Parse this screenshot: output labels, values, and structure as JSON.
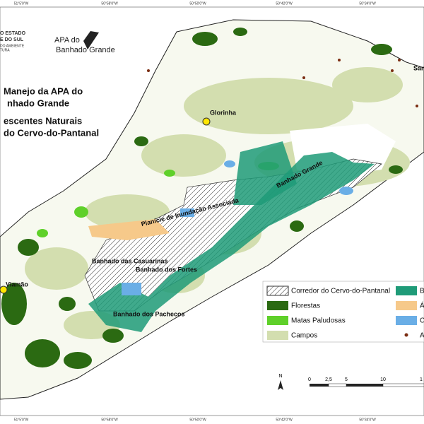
{
  "coordinates": [
    "51°5'0\"W",
    "50°58'0\"W",
    "50°50'0\"W",
    "50°42'0\"W",
    "50°34'0\"W"
  ],
  "header": {
    "agency_lines": [
      "O ESTADO",
      "E DO SUL",
      "DO AMBIENTE",
      "TURA"
    ],
    "logo_lines": [
      "APA do",
      "Banhado Grande"
    ]
  },
  "title_lines": [
    "Manejo da APA do",
    "nhado Grande",
    "escentes Naturais",
    "do Cervo-do-Pantanal"
  ],
  "places": [
    "Glorinha",
    "San",
    "Viamão",
    "Banhado Grande",
    "Planície de Inundação Associada",
    "Banhado das Casuarinas",
    "Banhado dos Fortes",
    "Banhado dos Pachecos"
  ],
  "legend": [
    {
      "label": "Corredor do Cervo-do-Pantanal",
      "color": "hatch"
    },
    {
      "label": "Florestas",
      "color": "#2b6a12"
    },
    {
      "label": "Matas Paludosas",
      "color": "#5fd02a"
    },
    {
      "label": "Campos",
      "color": "#d3deaf"
    },
    {
      "label": "Ba",
      "color": "#1f9b78"
    },
    {
      "label": "Á",
      "color": "#f6c98a"
    },
    {
      "label": "Co",
      "color": "#6aaee6"
    },
    {
      "label": "Af",
      "color": "#7b2d12"
    }
  ],
  "north": "N",
  "scale": [
    "0",
    "2,5",
    "5",
    "10",
    "1"
  ]
}
